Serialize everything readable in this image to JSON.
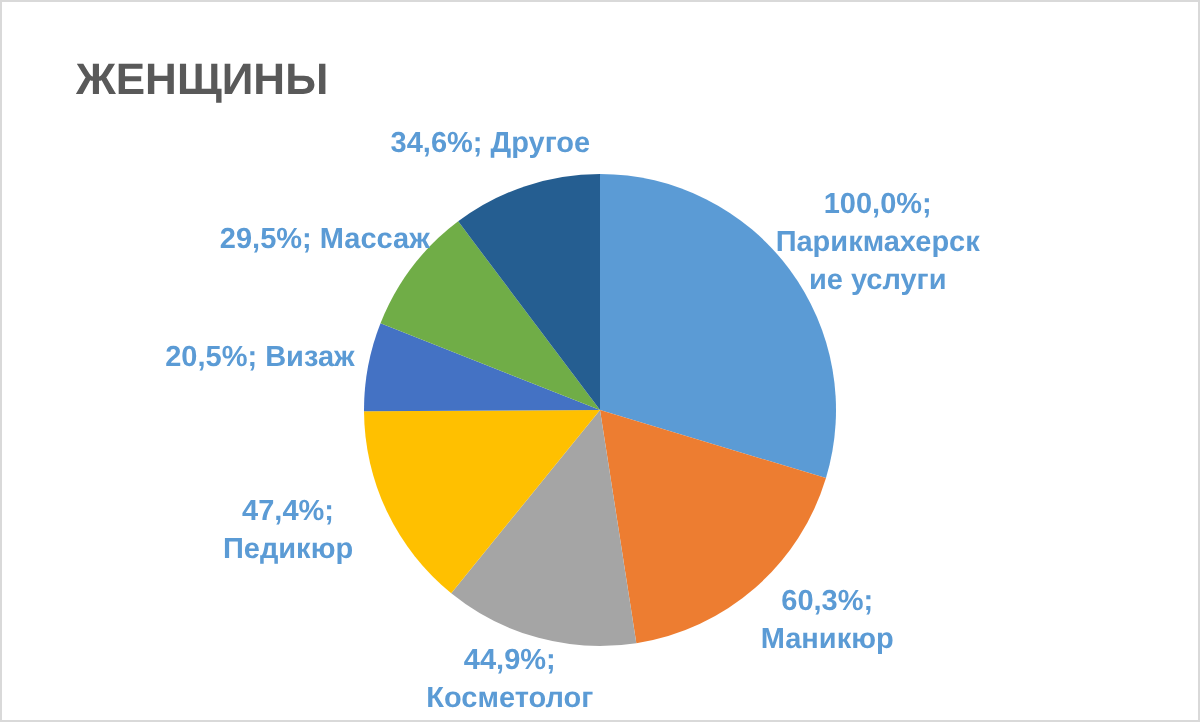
{
  "chart_data": {
    "type": "pie",
    "title": "ЖЕНЩИНЫ",
    "categories": [
      "Парикмахерские услуги",
      "Маникюр",
      "Косметолог",
      "Педикюр",
      "Визаж",
      "Массаж",
      "Другое"
    ],
    "values": [
      100,
      60.3,
      44.9,
      47.4,
      20.5,
      29.5,
      34.6
    ],
    "value_labels": [
      "100,0%;",
      "60,3%;",
      "44,9%;",
      "47,4%;",
      "20,5%;",
      "29,5%;",
      "34,6%;"
    ],
    "colors": [
      "#5b9bd5",
      "#ed7d31",
      "#a5a5a5",
      "#ffc000",
      "#4472c4",
      "#70ad47",
      "#255e91"
    ]
  }
}
